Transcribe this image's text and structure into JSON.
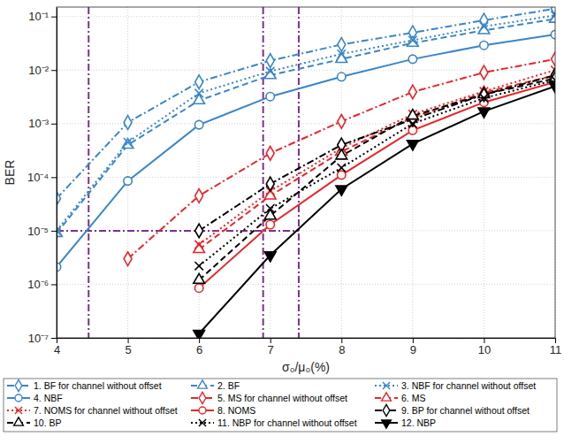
{
  "chart_data": {
    "type": "line",
    "x_label": "σ₀/μ₀(%)",
    "y_label": "BER",
    "log": "y",
    "grid": true,
    "legend": "bottom",
    "x": [
      4,
      5,
      6,
      7,
      8,
      9,
      10,
      11
    ],
    "xlim": [
      4,
      11
    ],
    "xticks": [
      4,
      5,
      6,
      7,
      8,
      9,
      10,
      11
    ],
    "ylim": [
      1e-07,
      0.15
    ],
    "yticks": [
      {
        "value": 1e-07,
        "label": "10⁻⁷"
      },
      {
        "value": 1e-06,
        "label": "10⁻⁶"
      },
      {
        "value": 1e-05,
        "label": "10⁻⁵"
      },
      {
        "value": 0.0001,
        "label": "10⁻⁴"
      },
      {
        "value": 0.001,
        "label": "10⁻³"
      },
      {
        "value": 0.01,
        "label": "10⁻²"
      },
      {
        "value": 0.1,
        "label": "10⁻¹"
      }
    ],
    "vlines": {
      "values": [
        4.45,
        6.9,
        7.4
      ],
      "color": "#7e2f8e"
    },
    "hline": {
      "value": 1e-05,
      "x": [
        4,
        7.4
      ],
      "color": "#7e2f8e"
    },
    "series": [
      {
        "name": "1. BF for channel without offset",
        "color": "#3a86c8",
        "marker": "diamond",
        "line_style": "dashdot",
        "values": [
          4e-05,
          0.00105,
          0.006,
          0.015,
          0.03,
          0.05,
          0.085,
          0.14
        ]
      },
      {
        "name": "2. BF",
        "color": "#3a86c8",
        "marker": "triangle",
        "line_style": "dashed",
        "values": [
          9e-06,
          0.0004,
          0.0027,
          0.008,
          0.016,
          0.032,
          0.055,
          0.09
        ]
      },
      {
        "name": "3. NBF for channel without offset",
        "color": "#3a86c8",
        "marker": "x",
        "line_style": "dotted",
        "values": [
          1e-05,
          0.00045,
          0.0037,
          0.0095,
          0.02,
          0.036,
          0.065,
          0.105
        ]
      },
      {
        "name": "4. NBF",
        "color": "#3a86c8",
        "marker": "circle",
        "line_style": "solid",
        "values": [
          2.1e-06,
          8.5e-05,
          0.00095,
          0.0032,
          0.0075,
          0.016,
          0.029,
          0.046
        ]
      },
      {
        "name": "5. MS for channel without offset",
        "color": "#e8262a",
        "marker": "diamond",
        "line_style": "dashdot",
        "values": [
          null,
          3e-06,
          4.5e-05,
          0.00028,
          0.0011,
          0.0039,
          0.009,
          0.016
        ]
      },
      {
        "name": "6. MS",
        "color": "#e8262a",
        "marker": "triangle",
        "line_style": "dashed",
        "values": [
          null,
          null,
          4.5e-06,
          4.5e-05,
          0.0003,
          0.0013,
          0.0038,
          0.008
        ]
      },
      {
        "name": "7. NOMS for channel without offset",
        "color": "#e8262a",
        "marker": "x",
        "line_style": "dotted",
        "values": [
          null,
          null,
          5.5e-06,
          5.5e-05,
          0.00035,
          0.0015,
          0.004,
          0.01
        ]
      },
      {
        "name": "8. NOMS",
        "color": "#e8262a",
        "marker": "circle",
        "line_style": "solid",
        "values": [
          null,
          null,
          8.5e-07,
          1.3e-05,
          0.00011,
          0.00075,
          0.0025,
          0.006
        ]
      },
      {
        "name": "9. BP for channel without offset",
        "color": "#000000",
        "marker": "diamond",
        "line_style": "dashdot",
        "values": [
          null,
          null,
          1e-05,
          7.5e-05,
          0.0004,
          0.0012,
          0.0035,
          0.008
        ]
      },
      {
        "name": "10. BP",
        "color": "#000000",
        "marker": "triangle",
        "line_style": "dashed",
        "values": [
          null,
          null,
          1.2e-06,
          1.9e-05,
          0.00025,
          0.0014,
          0.0035,
          0.007
        ]
      },
      {
        "name": "11. NBP for channel without offset",
        "color": "#000000",
        "marker": "x",
        "line_style": "dotted",
        "values": [
          null,
          null,
          2.2e-06,
          2.6e-05,
          0.00015,
          0.001,
          0.003,
          0.0065
        ]
      },
      {
        "name": "12. NBP",
        "color": "#000000",
        "marker": "triangle-down-filled",
        "line_style": "solid",
        "values": [
          null,
          null,
          1.2e-07,
          3.5e-06,
          6e-05,
          0.00042,
          0.0017,
          0.005
        ]
      }
    ]
  }
}
